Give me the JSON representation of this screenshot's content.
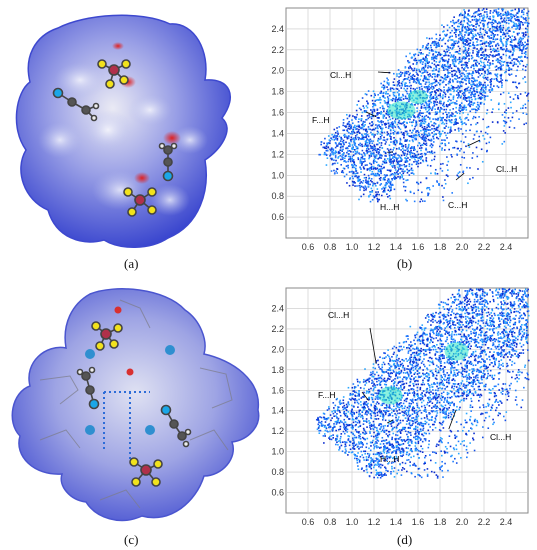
{
  "panels": [
    {
      "label": "(a)"
    },
    {
      "label": "(b)"
    },
    {
      "label": "(c)"
    },
    {
      "label": "(d)"
    }
  ],
  "chart_data": [
    {
      "type": "scatter",
      "panel": "(b)",
      "title": "",
      "xlabel": "",
      "ylabel": "",
      "xlim": [
        0.4,
        2.6
      ],
      "ylim": [
        0.4,
        2.6
      ],
      "x_ticks": [
        "0.6",
        "0.8",
        "1.0",
        "1.2",
        "1.4",
        "1.6",
        "1.8",
        "2.0",
        "2.2",
        "2.4"
      ],
      "y_ticks": [
        "0.6",
        "0.8",
        "1.0",
        "1.2",
        "1.4",
        "1.6",
        "1.8",
        "2.0",
        "2.2",
        "2.4"
      ],
      "grid": true,
      "annotations": [
        {
          "text": "Cl...H",
          "x": 1.35,
          "y": 1.98
        },
        {
          "text": "F...H",
          "x": 1.22,
          "y": 1.56
        },
        {
          "text": "H...H",
          "x": 1.32,
          "y": 1.22
        },
        {
          "text": "Cl...H",
          "x": 2.05,
          "y": 1.28
        },
        {
          "text": "C...H",
          "x": 2.02,
          "y": 1.02
        }
      ]
    },
    {
      "type": "scatter",
      "panel": "(d)",
      "title": "",
      "xlabel": "",
      "ylabel": "",
      "xlim": [
        0.4,
        2.6
      ],
      "ylim": [
        0.4,
        2.6
      ],
      "x_ticks": [
        "0.6",
        "0.8",
        "1.0",
        "1.2",
        "1.4",
        "1.6",
        "1.8",
        "2.0",
        "2.2",
        "2.4"
      ],
      "y_ticks": [
        "0.6",
        "0.8",
        "1.0",
        "1.2",
        "1.4",
        "1.6",
        "1.8",
        "2.0",
        "2.2",
        "2.4"
      ],
      "grid": true,
      "annotations": [
        {
          "text": "Cl...H",
          "x": 1.22,
          "y": 1.86
        },
        {
          "text": "F...H",
          "x": 1.15,
          "y": 1.5
        },
        {
          "text": "H...H",
          "x": 1.32,
          "y": 1.28
        },
        {
          "text": "Cl...H",
          "x": 1.88,
          "y": 1.22
        }
      ]
    }
  ],
  "colors": {
    "surface_blue": "#4b57d6",
    "surface_white": "#eef0f8",
    "contact_red": "#d22a2a",
    "fp_dark": "#0b2fd0",
    "fp_mid": "#1b8dff",
    "fp_hot": "#22e8c4"
  }
}
